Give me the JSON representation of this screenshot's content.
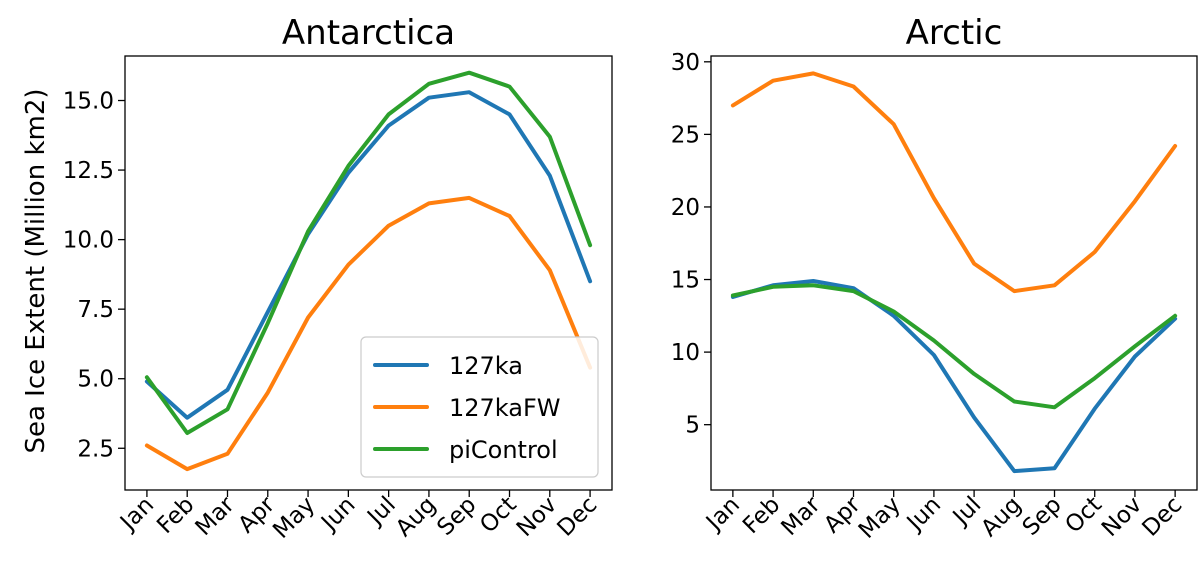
{
  "y_axis_label": "Sea Ice Extent (Million km2)",
  "chart_data": [
    {
      "type": "line",
      "title": "Antarctica",
      "xlabel": "",
      "ylabel": "Sea Ice Extent (Million km2)",
      "categories": [
        "Jan",
        "Feb",
        "Mar",
        "Apr",
        "May",
        "Jun",
        "Jul",
        "Aug",
        "Sep",
        "Oct",
        "Nov",
        "Dec"
      ],
      "ylim": [
        1.0,
        16.6
      ],
      "yticks": [
        "2.5",
        "5.0",
        "7.5",
        "10.0",
        "12.5",
        "15.0"
      ],
      "ytick_values": [
        2.5,
        5.0,
        7.5,
        10.0,
        12.5,
        15.0
      ],
      "grid": false,
      "legend": "bottom-right",
      "series": [
        {
          "name": "127ka",
          "color": "#1f77b4",
          "values": [
            4.9,
            3.6,
            4.6,
            7.4,
            10.2,
            12.4,
            14.1,
            15.1,
            15.3,
            14.5,
            12.3,
            8.5
          ]
        },
        {
          "name": "127kaFW",
          "color": "#ff7f0e",
          "values": [
            2.6,
            1.75,
            2.3,
            4.5,
            7.2,
            9.1,
            10.5,
            11.3,
            11.5,
            10.85,
            8.9,
            5.4
          ]
        },
        {
          "name": "piControl",
          "color": "#2ca02c",
          "values": [
            5.05,
            3.05,
            3.9,
            7.0,
            10.3,
            12.65,
            14.5,
            15.6,
            16.0,
            15.5,
            13.7,
            9.8
          ]
        }
      ]
    },
    {
      "type": "line",
      "title": "Arctic",
      "xlabel": "",
      "ylabel": "",
      "categories": [
        "Jan",
        "Feb",
        "Mar",
        "Apr",
        "May",
        "Jun",
        "Jul",
        "Aug",
        "Sep",
        "Oct",
        "Nov",
        "Dec"
      ],
      "ylim": [
        0.5,
        30.4
      ],
      "yticks": [
        "5",
        "10",
        "15",
        "20",
        "25",
        "30"
      ],
      "ytick_values": [
        5,
        10,
        15,
        20,
        25,
        30
      ],
      "grid": false,
      "legend": "",
      "series": [
        {
          "name": "127ka",
          "color": "#1f77b4",
          "values": [
            13.8,
            14.6,
            14.9,
            14.4,
            12.5,
            9.8,
            5.5,
            1.8,
            2.0,
            6.1,
            9.7,
            12.3
          ]
        },
        {
          "name": "127kaFW",
          "color": "#ff7f0e",
          "values": [
            27.0,
            28.7,
            29.2,
            28.3,
            25.7,
            20.6,
            16.1,
            14.2,
            14.6,
            16.9,
            20.4,
            24.2
          ]
        },
        {
          "name": "piControl",
          "color": "#2ca02c",
          "values": [
            13.9,
            14.5,
            14.6,
            14.2,
            12.8,
            10.8,
            8.5,
            6.6,
            6.2,
            8.2,
            10.4,
            12.5
          ]
        }
      ]
    }
  ]
}
